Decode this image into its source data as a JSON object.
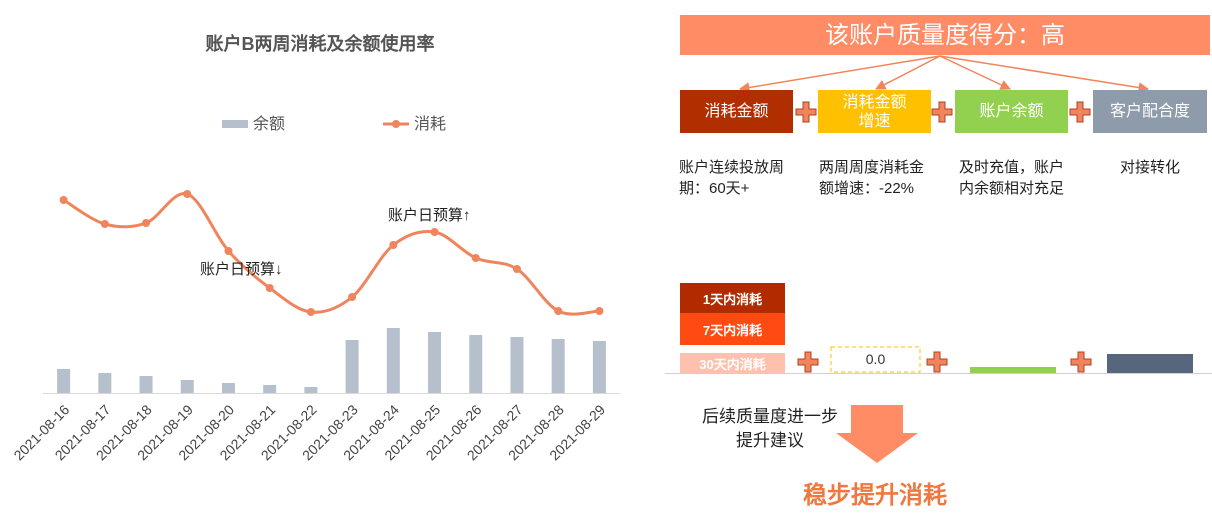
{
  "chart_data": {
    "type": "combo",
    "title": "账户B两周消耗及余额使用率",
    "categories": [
      "2021-08-16",
      "2021-08-17",
      "2021-08-18",
      "2021-08-19",
      "2021-08-20",
      "2021-08-21",
      "2021-08-22",
      "2021-08-23",
      "2021-08-24",
      "2021-08-25",
      "2021-08-26",
      "2021-08-27",
      "2021-08-28",
      "2021-08-29"
    ],
    "series": [
      {
        "name": "余额",
        "type": "bar",
        "color": "#b6c0cd",
        "values": [
          24,
          20,
          17,
          13,
          10,
          8,
          6,
          53,
          65,
          61,
          58,
          56,
          54,
          52
        ]
      },
      {
        "name": "消耗",
        "type": "line",
        "color": "#f0845c",
        "values": [
          193,
          169,
          170,
          199,
          142,
          105,
          81,
          96,
          148,
          161,
          135,
          124,
          82,
          82
        ]
      }
    ],
    "ylim": [
      0,
      220
    ],
    "annotations": [
      "账户日预算↓",
      "账户日预算↑"
    ]
  },
  "diagram": {
    "score_title": "该账户质量度得分：高",
    "factors": [
      {
        "label": "消耗金额",
        "note": "账户连续投放周期：60天+"
      },
      {
        "label": "消耗金额增速",
        "note": "两周周度消耗金额增速：-22%"
      },
      {
        "label": "账户余额",
        "note": "及时充值，账户内余额相对充足"
      },
      {
        "label": "客户配合度",
        "note": "对接转化"
      }
    ],
    "stack_labels": [
      "1天内消耗",
      "7天内消耗",
      "30天内消耗"
    ],
    "placeholder_value": "0.0",
    "advice": "后续质量度进一步提升建议",
    "conclusion": "稳步提升消耗"
  }
}
